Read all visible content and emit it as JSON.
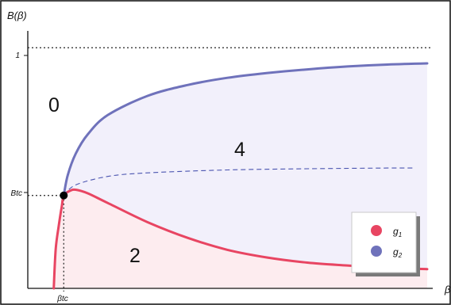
{
  "chart_data": {
    "type": "line",
    "title": "",
    "ylabel": "B(β)",
    "xlabel": "β",
    "xlim": [
      0,
      1
    ],
    "ylim": [
      0,
      1.06
    ],
    "critical_point": {
      "x_label": "βtc",
      "y_label": "Btc",
      "x": 0.09,
      "y": 0.386
    },
    "reference_line": {
      "y": 1,
      "label": "1",
      "style": "dotted"
    },
    "region_labels": [
      {
        "text": "0",
        "x": 0.065,
        "y": 0.76
      },
      {
        "text": "4",
        "x": 0.53,
        "y": 0.58
      },
      {
        "text": "2",
        "x": 0.27,
        "y": 0.14
      }
    ],
    "series": [
      {
        "name": "g1",
        "color": "#e84562",
        "style": "solid",
        "points": [
          [
            0.065,
            0.0
          ],
          [
            0.07,
            0.165
          ],
          [
            0.078,
            0.265
          ],
          [
            0.085,
            0.34
          ],
          [
            0.09,
            0.386
          ],
          [
            0.105,
            0.405
          ],
          [
            0.12,
            0.41
          ],
          [
            0.15,
            0.395
          ],
          [
            0.2,
            0.355
          ],
          [
            0.3,
            0.275
          ],
          [
            0.4,
            0.21
          ],
          [
            0.5,
            0.16
          ],
          [
            0.6,
            0.128
          ],
          [
            0.7,
            0.107
          ],
          [
            0.8,
            0.095
          ],
          [
            0.9,
            0.085
          ],
          [
            1.0,
            0.08
          ]
        ]
      },
      {
        "name": "g2",
        "color": "#6f72bb",
        "style": "solid",
        "points": [
          [
            0.09,
            0.386
          ],
          [
            0.1,
            0.47
          ],
          [
            0.12,
            0.56
          ],
          [
            0.15,
            0.64
          ],
          [
            0.2,
            0.72
          ],
          [
            0.3,
            0.8
          ],
          [
            0.4,
            0.845
          ],
          [
            0.5,
            0.875
          ],
          [
            0.6,
            0.895
          ],
          [
            0.7,
            0.91
          ],
          [
            0.8,
            0.922
          ],
          [
            0.9,
            0.93
          ],
          [
            1.0,
            0.935
          ]
        ]
      },
      {
        "name": "",
        "color": "#4b55b0",
        "style": "dashed",
        "points": [
          [
            0.09,
            0.386
          ],
          [
            0.12,
            0.43
          ],
          [
            0.2,
            0.465
          ],
          [
            0.3,
            0.48
          ],
          [
            0.5,
            0.492
          ],
          [
            0.7,
            0.497
          ],
          [
            0.9,
            0.5
          ],
          [
            0.97,
            0.5
          ]
        ]
      }
    ],
    "fills": {
      "upper": "#f2f0fb",
      "lower": "#fdecef"
    },
    "legend": {
      "position": "bottom-right",
      "entries": [
        {
          "label": "g",
          "sub": "1",
          "color": "#e84562"
        },
        {
          "label": "g",
          "sub": "2",
          "color": "#6f72bb"
        }
      ]
    },
    "grid": false
  }
}
